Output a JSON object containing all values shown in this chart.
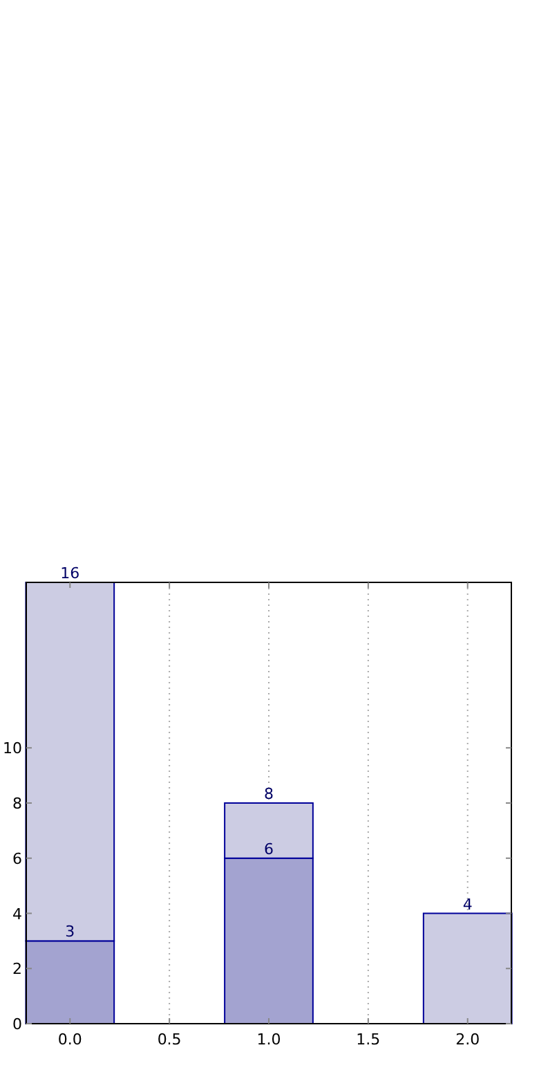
{
  "chart_data": {
    "type": "bar",
    "x": [
      0,
      1,
      2
    ],
    "stacked": true,
    "series": [
      {
        "color": "#a3a3d0",
        "values": [
          3,
          6,
          null
        ],
        "value_labels": [
          "3",
          "6",
          null
        ]
      },
      {
        "color": "#ccccE3",
        "values": [
          13,
          2,
          4
        ]
      }
    ],
    "totals": [
      "16",
      "8",
      "4"
    ],
    "xlim": [
      -0.22,
      2.22
    ],
    "ylim": [
      0,
      16
    ],
    "xticks": [
      {
        "value": 0,
        "label": "0.0"
      },
      {
        "value": 0.5,
        "label": "0.5"
      },
      {
        "value": 1,
        "label": "1.0"
      },
      {
        "value": 1.5,
        "label": "1.5"
      },
      {
        "value": 2,
        "label": "2.0"
      }
    ],
    "yticks": [
      0,
      2,
      4,
      6,
      8,
      10
    ],
    "grid": "x"
  }
}
